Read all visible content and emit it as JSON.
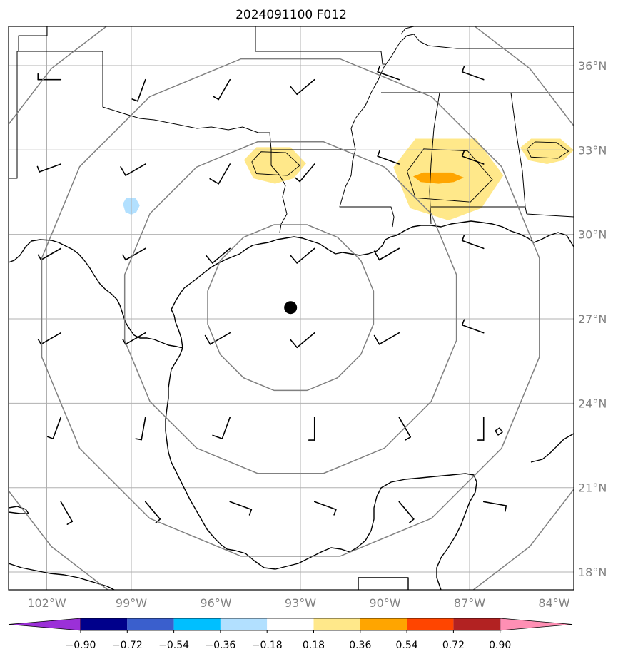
{
  "title": "2024091100 F012",
  "map": {
    "lon_range": [
      -103.0,
      -83.5
    ],
    "lat_range": [
      17.2,
      37.3
    ],
    "lon_ticks": [
      {
        "value": -102,
        "label": "102°W"
      },
      {
        "value": -99,
        "label": "99°W"
      },
      {
        "value": -96,
        "label": "96°W"
      },
      {
        "value": -93,
        "label": "93°W"
      },
      {
        "value": -90,
        "label": "90°W"
      },
      {
        "value": -87,
        "label": "87°W"
      },
      {
        "value": -84,
        "label": "84°W"
      }
    ],
    "lat_ticks": [
      {
        "value": 36,
        "label": "36°N"
      },
      {
        "value": 33,
        "label": "33°N"
      },
      {
        "value": 30,
        "label": "30°N"
      },
      {
        "value": 27,
        "label": "27°N"
      },
      {
        "value": 24,
        "label": "24°N"
      },
      {
        "value": 21,
        "label": "21°N"
      },
      {
        "value": 18,
        "label": "18°N"
      }
    ],
    "center": {
      "lon": -93.35,
      "lat": 27.4
    },
    "range_rings_deg": [
      3,
      6,
      9
    ],
    "grid": true,
    "feature_colors": {
      "coast": "#000000",
      "grid": "#b0b0b0",
      "rings": "#808080",
      "center": "#000000"
    }
  },
  "colorbar": {
    "tick_labels": [
      "−0.90",
      "−0.72",
      "−0.54",
      "−0.36",
      "−0.18",
      "0.18",
      "0.36",
      "0.54",
      "0.72",
      "0.90"
    ],
    "under_color": "#9b30d8",
    "over_color": "#ff8fb4",
    "colors": [
      "#00008b",
      "#3a5fcd",
      "#00bfff",
      "#b2e0ff",
      "#ffffff",
      "#ffe88a",
      "#ffa500",
      "#ff4500",
      "#b22222"
    ]
  },
  "chart_data": {
    "type": "map",
    "shaded_field": {
      "levels": [
        -0.9,
        -0.72,
        -0.54,
        -0.36,
        -0.18,
        0.18,
        0.36,
        0.54,
        0.72,
        0.9
      ],
      "regions": [
        {
          "level": "0.18–0.36",
          "lon": [
            -95.0,
            -92.8
          ],
          "lat": [
            31.8,
            33.1
          ]
        },
        {
          "level": "0.18–0.36",
          "lon": [
            -89.7,
            -85.8
          ],
          "lat": [
            30.5,
            33.4
          ]
        },
        {
          "level": "0.36–0.54",
          "lon": [
            -89.0,
            -87.2
          ],
          "lat": [
            31.8,
            32.2
          ]
        },
        {
          "level": "0.18–0.36",
          "lon": [
            -85.2,
            -83.3
          ],
          "lat": [
            32.5,
            33.4
          ]
        },
        {
          "level": "−0.36 to −0.18",
          "lon": [
            -99.3,
            -98.7
          ],
          "lat": [
            30.7,
            31.3
          ]
        }
      ]
    },
    "wind_barbs": {
      "lons": [
        -101.5,
        -98.5,
        -95.5,
        -92.5,
        -89.5,
        -86.5
      ],
      "lats": [
        35.5,
        32.5,
        29.5,
        26.5,
        23.5,
        20.5
      ],
      "speed_kt": [
        [
          5,
          5,
          5,
          10,
          5,
          5
        ],
        [
          5,
          10,
          10,
          5,
          5,
          5
        ],
        [
          5,
          5,
          10,
          10,
          10,
          5
        ],
        [
          5,
          5,
          10,
          10,
          10,
          5
        ],
        [
          5,
          5,
          10,
          5,
          5,
          5
        ],
        [
          5,
          5,
          5,
          5,
          5,
          5
        ]
      ],
      "direction_deg": [
        [
          270,
          200,
          210,
          230,
          290,
          290
        ],
        [
          250,
          240,
          210,
          220,
          290,
          290
        ],
        [
          240,
          240,
          230,
          230,
          240,
          290
        ],
        [
          240,
          240,
          240,
          230,
          240,
          290
        ],
        [
          200,
          190,
          200,
          180,
          150,
          180
        ],
        [
          150,
          140,
          110,
          110,
          140,
          100
        ]
      ]
    }
  }
}
